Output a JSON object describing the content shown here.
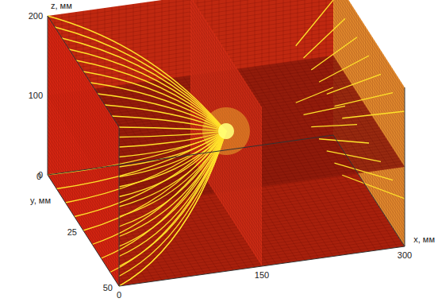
{
  "chart_data": {
    "type": "field3d",
    "xlabel": "x, мм",
    "ylabel": "y, мм",
    "zlabel": "z, мм",
    "xlim": [
      0,
      300
    ],
    "xticks": [
      0,
      150,
      300
    ],
    "ylim": [
      0,
      50
    ],
    "yticks": [
      0,
      25,
      50
    ],
    "zlim": [
      0,
      200
    ],
    "zticks": [
      0,
      100,
      200
    ]
  }
}
